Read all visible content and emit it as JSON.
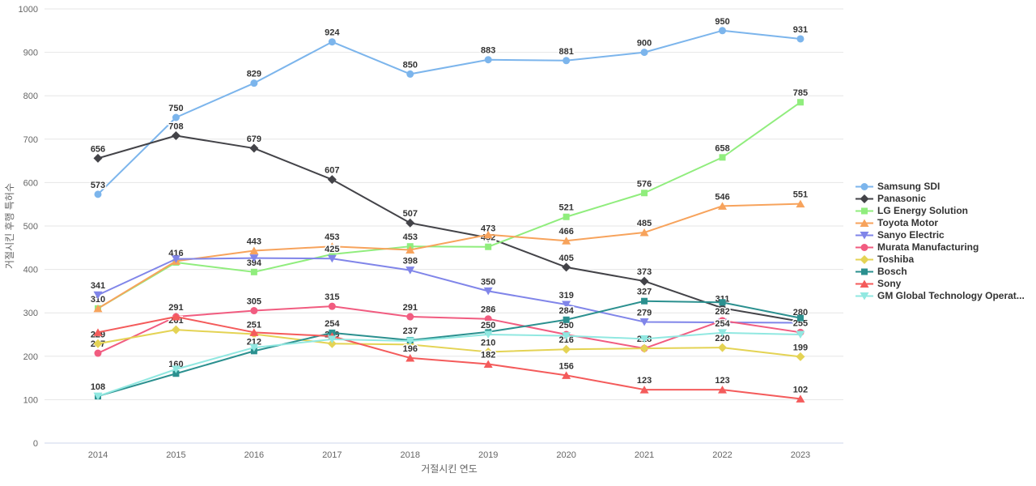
{
  "chart_data": {
    "type": "line",
    "title": "",
    "xlabel": "거절시킨 연도",
    "ylabel": "거절시킨 후행 특허수",
    "x": [
      "2014",
      "2015",
      "2016",
      "2017",
      "2018",
      "2019",
      "2020",
      "2021",
      "2022",
      "2023"
    ],
    "ylim": [
      0,
      1000
    ],
    "ytick_interval": 100,
    "yticks": [
      "0",
      "100",
      "200",
      "300",
      "400",
      "500",
      "600",
      "700",
      "800",
      "900",
      "1000"
    ],
    "grid": true,
    "legend_position": "right",
    "grid_color": "#e6e6e6",
    "axis_line_color": "#ccd6eb",
    "tick_label_color": "#666666",
    "data_label_color": "#333333",
    "series": [
      {
        "name": "Samsung SDI",
        "legend_label": "Samsung SDI",
        "color": "#7cb5ec",
        "marker": "circle",
        "values": [
          573,
          750,
          829,
          924,
          850,
          883,
          881,
          900,
          950,
          931
        ],
        "labels": [
          573,
          750,
          829,
          924,
          850,
          883,
          881,
          900,
          950,
          931
        ]
      },
      {
        "name": "Panasonic",
        "legend_label": "Panasonic",
        "color": "#434348",
        "marker": "diamond",
        "values": [
          656,
          708,
          679,
          607,
          507,
          473,
          405,
          373,
          311,
          280
        ],
        "labels": [
          656,
          708,
          679,
          607,
          507,
          473,
          405,
          373,
          311,
          280
        ]
      },
      {
        "name": "LG Energy Solution",
        "legend_label": "LG Energy Solution",
        "color": "#90ed7d",
        "marker": "square",
        "values": [
          310,
          416,
          394,
          435,
          453,
          452,
          521,
          576,
          658,
          785
        ],
        "labels": [
          310,
          416,
          394,
          null,
          453,
          452,
          521,
          576,
          658,
          785
        ]
      },
      {
        "name": "Toyota Motor",
        "legend_label": "Toyota Motor",
        "color": "#f7a35c",
        "marker": "triangle",
        "values": [
          310,
          419,
          443,
          453,
          445,
          480,
          466,
          485,
          546,
          551
        ],
        "labels": [
          null,
          null,
          443,
          453,
          null,
          null,
          466,
          485,
          546,
          551
        ]
      },
      {
        "name": "Sanyo Electric",
        "legend_label": "Sanyo Electric",
        "color": "#8085e9",
        "marker": "triangle-down",
        "values": [
          341,
          424,
          426,
          425,
          398,
          350,
          319,
          279,
          278,
          277
        ],
        "labels": [
          341,
          null,
          null,
          425,
          398,
          350,
          319,
          279,
          null,
          null
        ]
      },
      {
        "name": "Murata Manufacturing",
        "legend_label": "Murata Manufacturing",
        "color": "#f15c80",
        "marker": "circle",
        "values": [
          207,
          291,
          305,
          315,
          291,
          286,
          250,
          218,
          282,
          255
        ],
        "labels": [
          207,
          291,
          305,
          315,
          291,
          286,
          250,
          218,
          282,
          255
        ]
      },
      {
        "name": "Toshiba",
        "legend_label": "Toshiba",
        "color": "#e4d354",
        "marker": "diamond",
        "values": [
          229,
          261,
          251,
          229,
          227,
          210,
          216,
          218,
          220,
          199
        ],
        "labels": [
          229,
          261,
          251,
          229,
          null,
          210,
          216,
          null,
          220,
          199
        ]
      },
      {
        "name": "Bosch",
        "legend_label": "Bosch",
        "color": "#2b908f",
        "marker": "square",
        "values": [
          108,
          160,
          212,
          254,
          237,
          256,
          284,
          327,
          324,
          288
        ],
        "labels": [
          108,
          160,
          212,
          254,
          237,
          null,
          284,
          327,
          null,
          null
        ]
      },
      {
        "name": "Sony",
        "legend_label": "Sony",
        "color": "#f45b5b",
        "marker": "triangle",
        "values": [
          255,
          291,
          255,
          246,
          196,
          182,
          156,
          123,
          123,
          102
        ],
        "labels": [
          null,
          null,
          null,
          null,
          196,
          182,
          156,
          123,
          123,
          102
        ]
      },
      {
        "name": "GM Global Technology Operations",
        "legend_label": "GM Global Technology Operat...",
        "color": "#91e8e1",
        "marker": "triangle-down",
        "values": [
          108,
          170,
          220,
          239,
          235,
          250,
          247,
          240,
          254,
          250
        ],
        "labels": [
          null,
          null,
          null,
          null,
          null,
          250,
          null,
          null,
          254,
          null
        ]
      }
    ]
  }
}
